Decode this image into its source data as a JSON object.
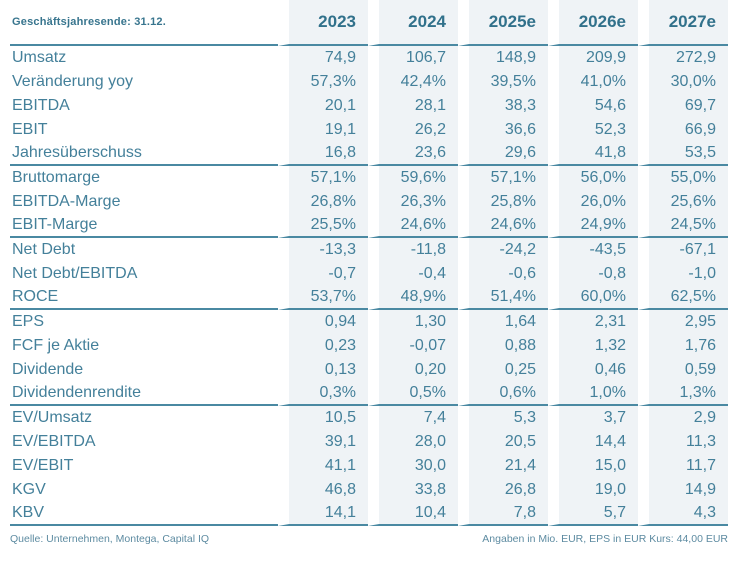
{
  "table": {
    "header_label": "Geschäftsjahresende: 31.12.",
    "columns": [
      "2023",
      "2024",
      "2025e",
      "2026e",
      "2027e"
    ],
    "rows": [
      {
        "label": "Umsatz",
        "values": [
          "74,9",
          "106,7",
          "148,9",
          "209,9",
          "272,9"
        ]
      },
      {
        "label": "Veränderung yoy",
        "values": [
          "57,3%",
          "42,4%",
          "39,5%",
          "41,0%",
          "30,0%"
        ]
      },
      {
        "label": "EBITDA",
        "values": [
          "20,1",
          "28,1",
          "38,3",
          "54,6",
          "69,7"
        ]
      },
      {
        "label": "EBIT",
        "values": [
          "19,1",
          "26,2",
          "36,6",
          "52,3",
          "66,9"
        ]
      },
      {
        "label": "Jahresüberschuss",
        "values": [
          "16,8",
          "23,6",
          "29,6",
          "41,8",
          "53,5"
        ]
      },
      {
        "label": "Bruttomarge",
        "values": [
          "57,1%",
          "59,6%",
          "57,1%",
          "56,0%",
          "55,0%"
        ]
      },
      {
        "label": "EBITDA-Marge",
        "values": [
          "26,8%",
          "26,3%",
          "25,8%",
          "26,0%",
          "25,6%"
        ]
      },
      {
        "label": "EBIT-Marge",
        "values": [
          "25,5%",
          "24,6%",
          "24,6%",
          "24,9%",
          "24,5%"
        ]
      },
      {
        "label": "Net Debt",
        "values": [
          "-13,3",
          "-11,8",
          "-24,2",
          "-43,5",
          "-67,1"
        ]
      },
      {
        "label": "Net Debt/EBITDA",
        "values": [
          "-0,7",
          "-0,4",
          "-0,6",
          "-0,8",
          "-1,0"
        ]
      },
      {
        "label": "ROCE",
        "values": [
          "53,7%",
          "48,9%",
          "51,4%",
          "60,0%",
          "62,5%"
        ]
      },
      {
        "label": "EPS",
        "values": [
          "0,94",
          "1,30",
          "1,64",
          "2,31",
          "2,95"
        ]
      },
      {
        "label": "FCF je Aktie",
        "values": [
          "0,23",
          "-0,07",
          "0,88",
          "1,32",
          "1,76"
        ]
      },
      {
        "label": "Dividende",
        "values": [
          "0,13",
          "0,20",
          "0,25",
          "0,46",
          "0,59"
        ]
      },
      {
        "label": "Dividendenrendite",
        "values": [
          "0,3%",
          "0,5%",
          "0,6%",
          "1,0%",
          "1,3%"
        ]
      },
      {
        "label": "EV/Umsatz",
        "values": [
          "10,5",
          "7,4",
          "5,3",
          "3,7",
          "2,9"
        ]
      },
      {
        "label": "EV/EBITDA",
        "values": [
          "39,1",
          "28,0",
          "20,5",
          "14,4",
          "11,3"
        ]
      },
      {
        "label": "EV/EBIT",
        "values": [
          "41,1",
          "30,0",
          "21,4",
          "15,0",
          "11,7"
        ]
      },
      {
        "label": "KGV",
        "values": [
          "46,8",
          "33,8",
          "26,8",
          "19,0",
          "14,9"
        ]
      },
      {
        "label": "KBV",
        "values": [
          "14,1",
          "10,4",
          "7,8",
          "5,7",
          "4,3"
        ]
      }
    ]
  },
  "footer": {
    "source": "Quelle: Unternehmen, Montega, Capital IQ",
    "note": "Angaben in Mio. EUR, EPS in EUR Kurs: 44,00 EUR"
  },
  "colors": {
    "accent_text": "#44809a",
    "accent_bold": "#31718b",
    "separator_line": "#4a89a2",
    "column_background": "#eff3f6"
  }
}
